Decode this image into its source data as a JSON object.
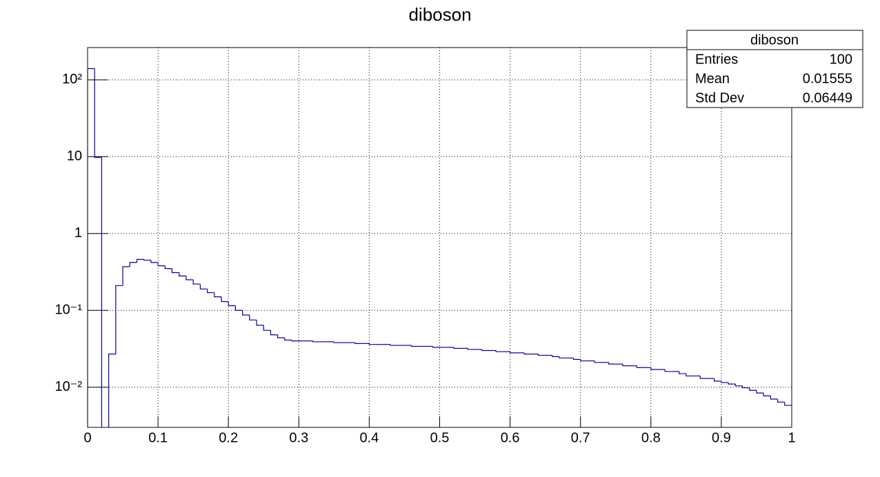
{
  "chart_data": {
    "type": "histogram",
    "title": "diboson",
    "bins": [
      0,
      0.01,
      0.02,
      0.03,
      0.04,
      0.05,
      0.06,
      0.07,
      0.08,
      0.09,
      0.1,
      0.11,
      0.12,
      0.13,
      0.14,
      0.15,
      0.16,
      0.17,
      0.18,
      0.19,
      0.2,
      0.21,
      0.22,
      0.23,
      0.24,
      0.25,
      0.26,
      0.27,
      0.28,
      0.29,
      0.3,
      0.31,
      0.32,
      0.33,
      0.34,
      0.35,
      0.36,
      0.37,
      0.38,
      0.39,
      0.4,
      0.41,
      0.42,
      0.43,
      0.44,
      0.45,
      0.46,
      0.47,
      0.48,
      0.49,
      0.5,
      0.51,
      0.52,
      0.53,
      0.54,
      0.55,
      0.56,
      0.57,
      0.58,
      0.59,
      0.6,
      0.61,
      0.62,
      0.63,
      0.64,
      0.65,
      0.66,
      0.67,
      0.68,
      0.69,
      0.7,
      0.71,
      0.72,
      0.73,
      0.74,
      0.75,
      0.76,
      0.77,
      0.78,
      0.79,
      0.8,
      0.81,
      0.82,
      0.83,
      0.84,
      0.85,
      0.86,
      0.87,
      0.88,
      0.89,
      0.9,
      0.91,
      0.92,
      0.93,
      0.94,
      0.95,
      0.96,
      0.97,
      0.98,
      0.99,
      1
    ],
    "values": [
      140,
      9.8,
      0,
      0.027,
      0.21,
      0.37,
      0.42,
      0.46,
      0.45,
      0.42,
      0.38,
      0.35,
      0.31,
      0.28,
      0.25,
      0.22,
      0.19,
      0.17,
      0.15,
      0.13,
      0.115,
      0.1,
      0.087,
      0.075,
      0.064,
      0.055,
      0.048,
      0.044,
      0.041,
      0.04,
      0.04,
      0.04,
      0.039,
      0.039,
      0.039,
      0.038,
      0.038,
      0.038,
      0.037,
      0.037,
      0.036,
      0.036,
      0.036,
      0.035,
      0.035,
      0.035,
      0.034,
      0.034,
      0.034,
      0.033,
      0.033,
      0.033,
      0.032,
      0.032,
      0.031,
      0.031,
      0.03,
      0.03,
      0.029,
      0.029,
      0.028,
      0.028,
      0.027,
      0.027,
      0.026,
      0.026,
      0.025,
      0.024,
      0.024,
      0.023,
      0.022,
      0.022,
      0.021,
      0.021,
      0.02,
      0.02,
      0.019,
      0.019,
      0.018,
      0.018,
      0.017,
      0.017,
      0.016,
      0.016,
      0.015,
      0.014,
      0.014,
      0.013,
      0.013,
      0.012,
      0.0115,
      0.011,
      0.0104,
      0.0098,
      0.0091,
      0.0084,
      0.0077,
      0.007,
      0.0064,
      0.0058
    ],
    "color": "#000099",
    "xlim": [
      0,
      1
    ],
    "xticks": [
      0,
      0.1,
      0.2,
      0.3,
      0.4,
      0.5,
      0.6,
      0.7,
      0.8,
      0.9,
      1
    ],
    "ylim": [
      0.003,
      263
    ],
    "log_y": true,
    "yticks": [
      {
        "value": 0.01,
        "label": "10⁻²"
      },
      {
        "value": 0.1,
        "label": "10⁻¹"
      },
      1,
      10,
      {
        "value": 100,
        "label": "10²"
      }
    ],
    "grid": true,
    "stats_box": {
      "title": "diboson",
      "rows": [
        [
          "Entries",
          100
        ],
        [
          "Mean",
          0.01555
        ],
        [
          "Std Dev",
          0.06449
        ]
      ]
    }
  }
}
